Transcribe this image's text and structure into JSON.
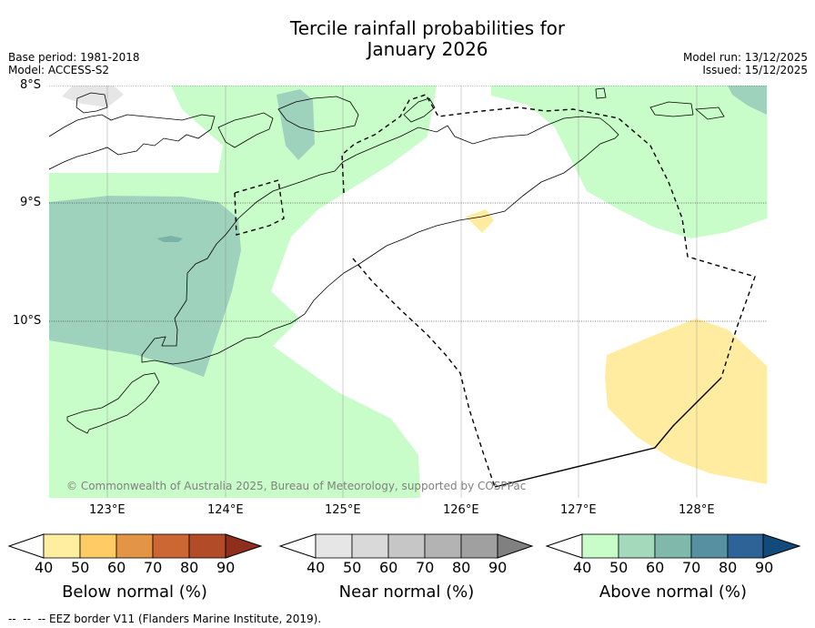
{
  "title_line1": "Tercile rainfall probabilities for",
  "title_line2": "January 2026",
  "base_period": "Base period: 1981-2018",
  "model": "Model: ACCESS-S2",
  "model_run": "Model run: 13/12/2025",
  "issued": "Issued: 15/12/2025",
  "lat_labels": [
    "8°S",
    "9°S",
    "10°S"
  ],
  "lon_labels": [
    "123°E",
    "124°E",
    "125°E",
    "126°E",
    "127°E",
    "128°E"
  ],
  "copyright": "© Commonwealth of Australia 2025, Bureau of Meteorology, supported by COSPPac",
  "eez_note": "--  --  -- EEZ border V11 (Flanders Marine Institute, 2019).",
  "colorbars": [
    {
      "label": "Below normal (%)",
      "ticks": [
        "40",
        "50",
        "60",
        "70",
        "80",
        "90"
      ],
      "under_color": "#ffffff",
      "colors": [
        "#ffeda0",
        "#fecb65",
        "#e39444",
        "#cc6633",
        "#b24b27"
      ],
      "over_color": "#8f2e1b"
    },
    {
      "label": "Near normal (%)",
      "ticks": [
        "40",
        "50",
        "60",
        "70",
        "80",
        "90"
      ],
      "under_color": "#ffffff",
      "colors": [
        "#e6e6e6",
        "#d9d9d9",
        "#c6c6c6",
        "#b3b3b3",
        "#a0a0a0"
      ],
      "over_color": "#808080"
    },
    {
      "label": "Above normal (%)",
      "ticks": [
        "40",
        "50",
        "60",
        "70",
        "80",
        "90"
      ],
      "under_color": "#ffffff",
      "colors": [
        "#c8fcc8",
        "#a5d9bb",
        "#80b8ac",
        "#5790a0",
        "#2e6398"
      ],
      "over_color": "#134a7c"
    }
  ],
  "map_colors": {
    "above_40_50": "#c8fcc8",
    "above_50_60": "#9fd2bc",
    "above_60_70": "#7ab2a8",
    "below_40_50": "#ffeca0",
    "near_40_50": "#e6e6e6",
    "coast": "#000000",
    "grid": "#808080"
  }
}
